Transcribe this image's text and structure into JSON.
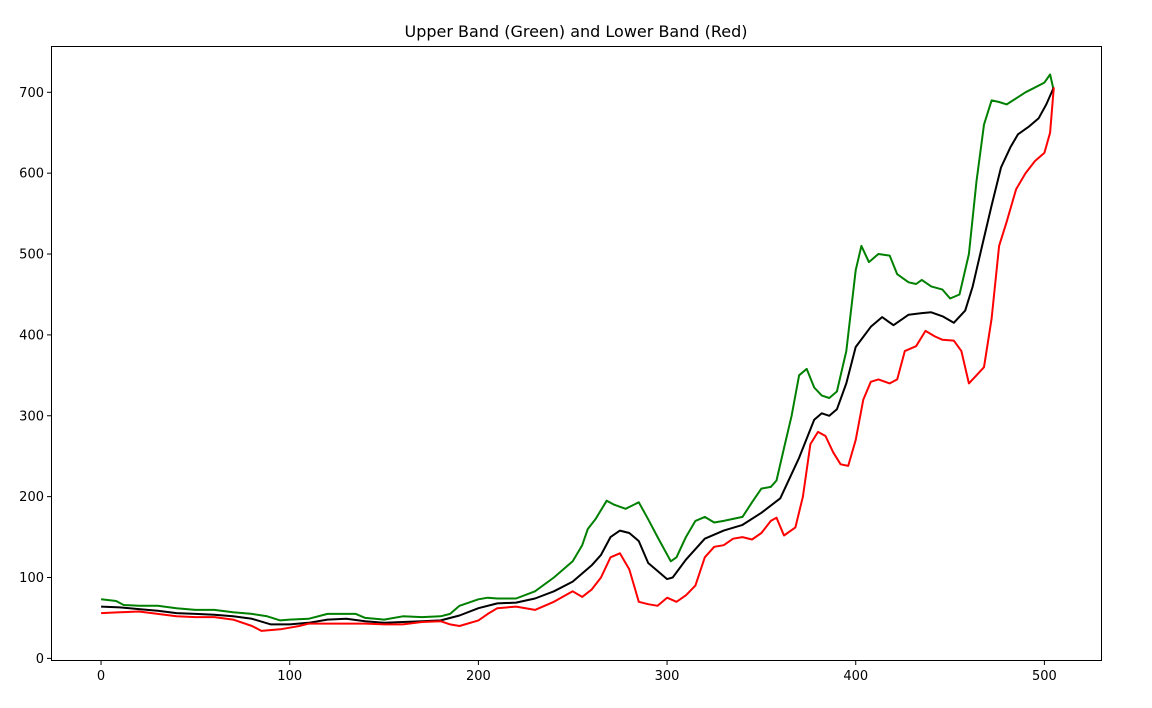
{
  "chart_data": {
    "type": "line",
    "title": "Upper Band (Green) and Lower Band (Red)",
    "xlabel": "",
    "ylabel": "",
    "xlim": [
      -26,
      530
    ],
    "ylim": [
      -2,
      756
    ],
    "x_ticks": [
      0,
      100,
      200,
      300,
      400,
      500
    ],
    "y_ticks": [
      0,
      100,
      200,
      300,
      400,
      500,
      600,
      700
    ],
    "grid": false,
    "legend": "none",
    "series": [
      {
        "color": "#008000",
        "points": [
          [
            0,
            73
          ],
          [
            8,
            71
          ],
          [
            12,
            66
          ],
          [
            20,
            65
          ],
          [
            30,
            65
          ],
          [
            40,
            62
          ],
          [
            50,
            60
          ],
          [
            60,
            60
          ],
          [
            70,
            57
          ],
          [
            80,
            55
          ],
          [
            88,
            52
          ],
          [
            95,
            47
          ],
          [
            100,
            48
          ],
          [
            110,
            49
          ],
          [
            120,
            55
          ],
          [
            135,
            55
          ],
          [
            140,
            50
          ],
          [
            150,
            48
          ],
          [
            160,
            52
          ],
          [
            170,
            51
          ],
          [
            180,
            52
          ],
          [
            185,
            55
          ],
          [
            190,
            65
          ],
          [
            200,
            73
          ],
          [
            205,
            75
          ],
          [
            210,
            74
          ],
          [
            220,
            74
          ],
          [
            230,
            83
          ],
          [
            240,
            100
          ],
          [
            250,
            120
          ],
          [
            255,
            140
          ],
          [
            258,
            160
          ],
          [
            262,
            172
          ],
          [
            268,
            195
          ],
          [
            272,
            190
          ],
          [
            278,
            185
          ],
          [
            285,
            193
          ],
          [
            290,
            172
          ],
          [
            295,
            150
          ],
          [
            302,
            120
          ],
          [
            305,
            125
          ],
          [
            310,
            150
          ],
          [
            315,
            170
          ],
          [
            320,
            175
          ],
          [
            325,
            168
          ],
          [
            330,
            170
          ],
          [
            340,
            175
          ],
          [
            345,
            193
          ],
          [
            350,
            210
          ],
          [
            355,
            212
          ],
          [
            358,
            220
          ],
          [
            362,
            260
          ],
          [
            366,
            300
          ],
          [
            370,
            350
          ],
          [
            374,
            358
          ],
          [
            378,
            335
          ],
          [
            382,
            325
          ],
          [
            386,
            322
          ],
          [
            390,
            330
          ],
          [
            395,
            380
          ],
          [
            400,
            480
          ],
          [
            403,
            510
          ],
          [
            407,
            490
          ],
          [
            412,
            500
          ],
          [
            418,
            498
          ],
          [
            422,
            475
          ],
          [
            428,
            465
          ],
          [
            432,
            463
          ],
          [
            435,
            468
          ],
          [
            440,
            460
          ],
          [
            446,
            456
          ],
          [
            450,
            445
          ],
          [
            455,
            450
          ],
          [
            460,
            500
          ],
          [
            464,
            590
          ],
          [
            468,
            660
          ],
          [
            472,
            690
          ],
          [
            476,
            688
          ],
          [
            480,
            685
          ],
          [
            490,
            700
          ],
          [
            500,
            712
          ],
          [
            503,
            722
          ],
          [
            505,
            702
          ]
        ]
      },
      {
        "color": "#000000",
        "points": [
          [
            0,
            64
          ],
          [
            10,
            63
          ],
          [
            20,
            61
          ],
          [
            30,
            59
          ],
          [
            40,
            56
          ],
          [
            50,
            55
          ],
          [
            60,
            54
          ],
          [
            70,
            52
          ],
          [
            80,
            49
          ],
          [
            90,
            42
          ],
          [
            100,
            42
          ],
          [
            110,
            44
          ],
          [
            120,
            48
          ],
          [
            130,
            49
          ],
          [
            140,
            46
          ],
          [
            150,
            44
          ],
          [
            160,
            45
          ],
          [
            170,
            46
          ],
          [
            180,
            47
          ],
          [
            190,
            53
          ],
          [
            200,
            62
          ],
          [
            210,
            68
          ],
          [
            220,
            69
          ],
          [
            230,
            74
          ],
          [
            240,
            83
          ],
          [
            250,
            95
          ],
          [
            260,
            115
          ],
          [
            265,
            128
          ],
          [
            270,
            150
          ],
          [
            275,
            158
          ],
          [
            280,
            155
          ],
          [
            285,
            145
          ],
          [
            290,
            118
          ],
          [
            295,
            108
          ],
          [
            300,
            98
          ],
          [
            303,
            100
          ],
          [
            310,
            122
          ],
          [
            320,
            148
          ],
          [
            330,
            158
          ],
          [
            340,
            165
          ],
          [
            350,
            180
          ],
          [
            360,
            198
          ],
          [
            370,
            248
          ],
          [
            378,
            295
          ],
          [
            382,
            303
          ],
          [
            386,
            300
          ],
          [
            390,
            308
          ],
          [
            395,
            340
          ],
          [
            400,
            385
          ],
          [
            408,
            410
          ],
          [
            414,
            422
          ],
          [
            420,
            412
          ],
          [
            428,
            425
          ],
          [
            435,
            427
          ],
          [
            440,
            428
          ],
          [
            446,
            423
          ],
          [
            452,
            415
          ],
          [
            458,
            430
          ],
          [
            462,
            460
          ],
          [
            467,
            510
          ],
          [
            472,
            560
          ],
          [
            477,
            607
          ],
          [
            482,
            632
          ],
          [
            486,
            648
          ],
          [
            492,
            658
          ],
          [
            497,
            668
          ],
          [
            501,
            685
          ],
          [
            505,
            706
          ]
        ]
      },
      {
        "color": "#ff0000",
        "points": [
          [
            0,
            56
          ],
          [
            10,
            57
          ],
          [
            20,
            58
          ],
          [
            30,
            55
          ],
          [
            40,
            52
          ],
          [
            50,
            51
          ],
          [
            60,
            51
          ],
          [
            70,
            48
          ],
          [
            80,
            40
          ],
          [
            85,
            34
          ],
          [
            95,
            36
          ],
          [
            100,
            38
          ],
          [
            105,
            40
          ],
          [
            110,
            43
          ],
          [
            120,
            43
          ],
          [
            130,
            43
          ],
          [
            140,
            43
          ],
          [
            150,
            42
          ],
          [
            160,
            42
          ],
          [
            170,
            45
          ],
          [
            180,
            46
          ],
          [
            185,
            42
          ],
          [
            190,
            40
          ],
          [
            200,
            47
          ],
          [
            205,
            55
          ],
          [
            210,
            62
          ],
          [
            220,
            64
          ],
          [
            230,
            60
          ],
          [
            240,
            70
          ],
          [
            250,
            83
          ],
          [
            255,
            76
          ],
          [
            260,
            85
          ],
          [
            265,
            100
          ],
          [
            270,
            125
          ],
          [
            275,
            130
          ],
          [
            280,
            110
          ],
          [
            285,
            70
          ],
          [
            290,
            67
          ],
          [
            295,
            65
          ],
          [
            300,
            75
          ],
          [
            305,
            70
          ],
          [
            310,
            78
          ],
          [
            315,
            90
          ],
          [
            320,
            125
          ],
          [
            325,
            138
          ],
          [
            330,
            140
          ],
          [
            335,
            148
          ],
          [
            340,
            150
          ],
          [
            345,
            147
          ],
          [
            350,
            155
          ],
          [
            355,
            170
          ],
          [
            358,
            174
          ],
          [
            362,
            152
          ],
          [
            368,
            162
          ],
          [
            372,
            200
          ],
          [
            376,
            265
          ],
          [
            380,
            280
          ],
          [
            384,
            275
          ],
          [
            388,
            255
          ],
          [
            392,
            240
          ],
          [
            396,
            238
          ],
          [
            400,
            270
          ],
          [
            404,
            320
          ],
          [
            408,
            342
          ],
          [
            412,
            345
          ],
          [
            418,
            340
          ],
          [
            422,
            345
          ],
          [
            426,
            380
          ],
          [
            432,
            386
          ],
          [
            437,
            405
          ],
          [
            442,
            398
          ],
          [
            446,
            394
          ],
          [
            452,
            393
          ],
          [
            456,
            380
          ],
          [
            460,
            340
          ],
          [
            464,
            350
          ],
          [
            468,
            360
          ],
          [
            472,
            420
          ],
          [
            476,
            510
          ],
          [
            480,
            540
          ],
          [
            485,
            580
          ],
          [
            490,
            600
          ],
          [
            495,
            615
          ],
          [
            500,
            625
          ],
          [
            503,
            650
          ],
          [
            505,
            706
          ]
        ]
      }
    ]
  }
}
